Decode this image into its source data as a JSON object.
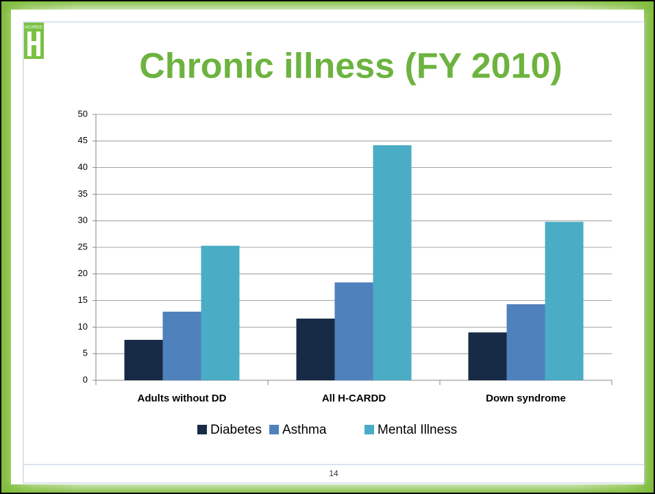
{
  "logo_text": "HCARDD",
  "page_number": "14",
  "chart_data": {
    "type": "bar",
    "title": "Chronic illness (FY 2010)",
    "categories": [
      "Adults without DD",
      "All H-CARDD",
      "Down syndrome"
    ],
    "series": [
      {
        "name": "Diabetes",
        "color": "#172b46",
        "values": [
          7.6,
          11.6,
          9.0
        ]
      },
      {
        "name": "Asthma",
        "color": "#4f81bd",
        "values": [
          12.9,
          18.4,
          14.3
        ]
      },
      {
        "name": "Mental Illness",
        "color": "#4bacc6",
        "values": [
          25.3,
          44.2,
          29.8
        ]
      }
    ],
    "ylim": [
      0,
      50
    ],
    "yticks": [
      0,
      5,
      10,
      15,
      20,
      25,
      30,
      35,
      40,
      45,
      50
    ],
    "grid": true,
    "legend": "bottom"
  }
}
